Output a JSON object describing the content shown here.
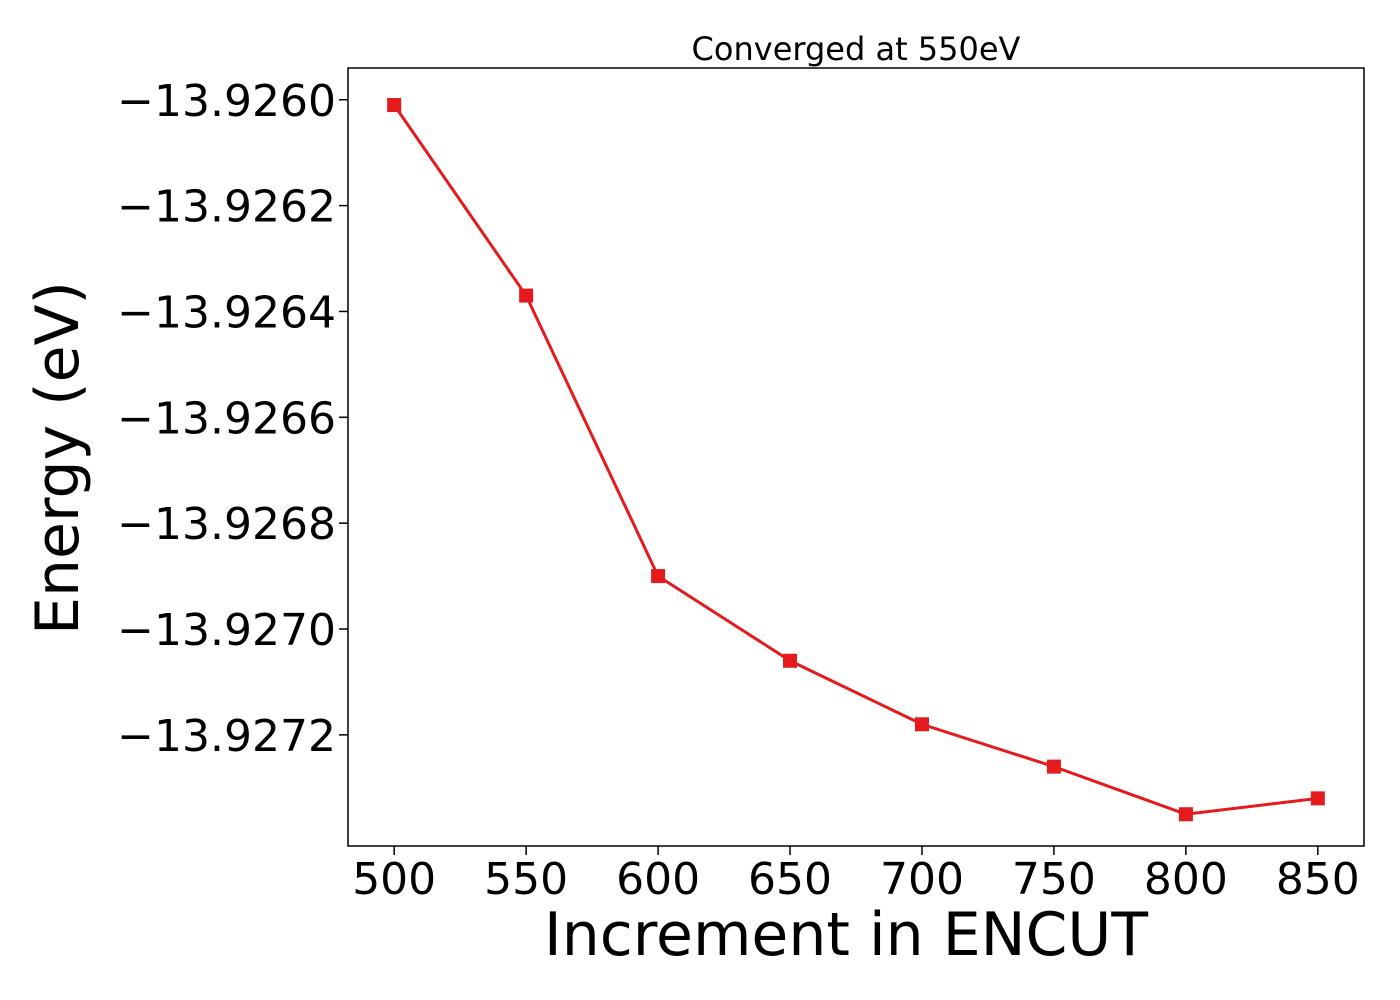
{
  "chart_data": {
    "type": "line",
    "title": "Converged at 550eV",
    "xlabel": "Increment in ENCUT",
    "ylabel": "Energy (eV)",
    "x": [
      500,
      550,
      600,
      650,
      700,
      750,
      800,
      850
    ],
    "series": [
      {
        "values": [
          -13.92601,
          -13.92637,
          -13.9269,
          -13.92706,
          -13.92718,
          -13.92726,
          -13.92735,
          -13.92732
        ]
      }
    ],
    "x_ticks": [
      500,
      550,
      600,
      650,
      700,
      750,
      800,
      850
    ],
    "x_tick_labels": [
      "500",
      "550",
      "600",
      "650",
      "700",
      "750",
      "800",
      "850"
    ],
    "y_ticks": [
      -13.926,
      -13.9262,
      -13.9264,
      -13.9266,
      -13.9268,
      -13.927,
      -13.9272
    ],
    "y_tick_labels": [
      "−13.9260",
      "−13.9262",
      "−13.9264",
      "−13.9266",
      "−13.9268",
      "−13.9270",
      "−13.9272"
    ],
    "xlim": [
      482.5,
      867.5
    ],
    "ylim": [
      -13.92741,
      -13.92594
    ],
    "line_color": "#e41a1c",
    "marker": "square",
    "grid": false,
    "legend": "none"
  }
}
